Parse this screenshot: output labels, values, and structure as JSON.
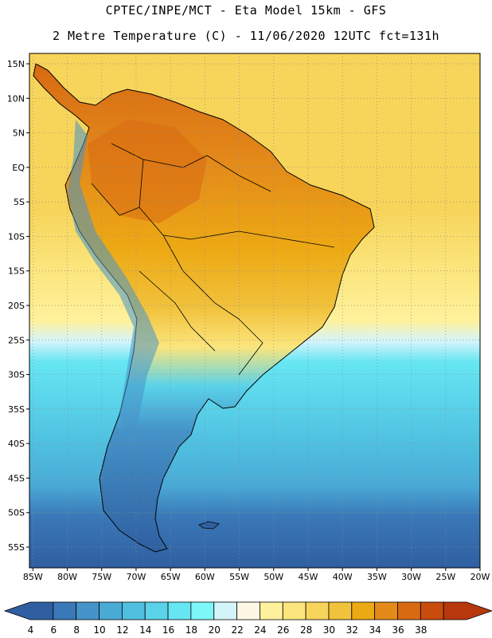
{
  "header": {
    "line1": "CPTEC/INPE/MCT  -   Eta Model 15km  -  GFS",
    "line2": "2 Metre Temperature (C) - 11/06/2020 12UTC fct=131h"
  },
  "map": {
    "lat_labels": [
      "15N",
      "10N",
      "5N",
      "EQ",
      "5S",
      "10S",
      "15S",
      "20S",
      "25S",
      "30S",
      "35S",
      "40S",
      "45S",
      "50S",
      "55S"
    ],
    "lat_values": [
      15,
      10,
      5,
      0,
      -5,
      -10,
      -15,
      -20,
      -25,
      -30,
      -35,
      -40,
      -45,
      -50,
      -55
    ],
    "lon_labels": [
      "85W",
      "80W",
      "75W",
      "70W",
      "65W",
      "60W",
      "55W",
      "50W",
      "45W",
      "40W",
      "35W",
      "30W",
      "25W",
      "20W"
    ],
    "lon_values": [
      -85,
      -80,
      -75,
      -70,
      -65,
      -60,
      -55,
      -50,
      -45,
      -40,
      -35,
      -30,
      -25,
      -20
    ],
    "extent": {
      "lon_min": -85.5,
      "lon_max": -20,
      "lat_min": -58,
      "lat_max": 16.5
    },
    "grid": "dotted"
  },
  "colorbar": {
    "labels": [
      "4",
      "6",
      "8",
      "10",
      "12",
      "14",
      "16",
      "18",
      "20",
      "22",
      "24",
      "26",
      "28",
      "30",
      "32",
      "34",
      "36",
      "38"
    ],
    "colors": [
      "#2f5fa0",
      "#3a78b8",
      "#4594c9",
      "#4aaad6",
      "#4fc0e0",
      "#5ad3ea",
      "#66e6f2",
      "#7df7f7",
      "#d4f4fb",
      "#fdf8e6",
      "#fff29c",
      "#fbe57c",
      "#f7d45a",
      "#f1c23c",
      "#eda914",
      "#e38a1a",
      "#d86a12",
      "#c84c0c",
      "#b8380e"
    ]
  }
}
